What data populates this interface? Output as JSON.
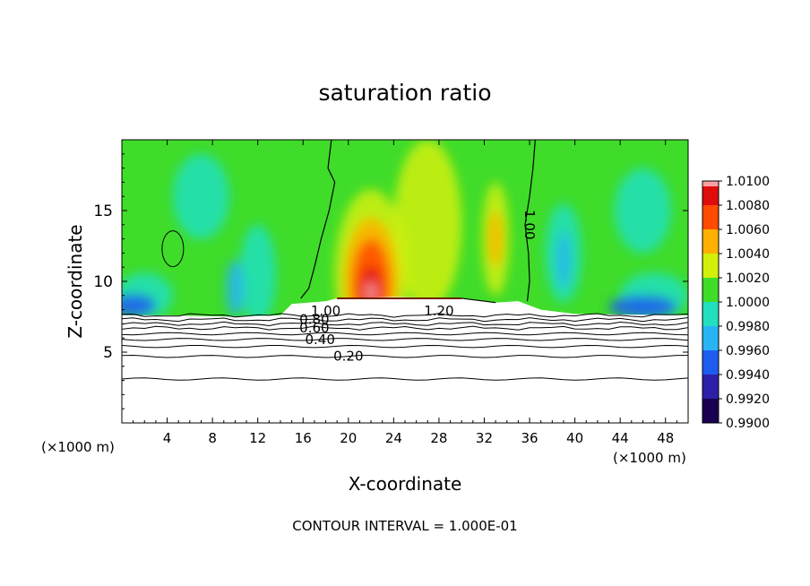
{
  "chart_data": {
    "type": "heatmap",
    "title": "saturation ratio",
    "xlabel": "X-coordinate",
    "ylabel": "Z-coordinate",
    "x_unit_left": "(×1000 m)",
    "x_unit_right": "(×1000 m)",
    "xlim": [
      0,
      50
    ],
    "ylim": [
      0,
      20
    ],
    "x_ticks": [
      4,
      8,
      12,
      16,
      20,
      24,
      28,
      32,
      36,
      40,
      44,
      48
    ],
    "x_tick_labels": [
      "4",
      "8",
      "12",
      "16",
      "20",
      "24",
      "28",
      "32",
      "36",
      "40",
      "44",
      "48"
    ],
    "y_ticks": [
      5,
      10,
      15
    ],
    "y_tick_labels": [
      "5",
      "10",
      "15"
    ],
    "footer": "CONTOUR INTERVAL = 1.000E-01",
    "colorbar": {
      "levels": [
        0.99,
        0.992,
        0.994,
        0.996,
        0.998,
        1.0,
        1.002,
        1.004,
        1.006,
        1.008,
        1.01
      ],
      "labels": [
        "0.9900",
        "0.9920",
        "0.9940",
        "0.9960",
        "0.9980",
        "1.0000",
        "1.0020",
        "1.0040",
        "1.0060",
        "1.0080",
        "1.0100"
      ],
      "colors": [
        "#1a0050",
        "#2c1fa8",
        "#1e5cf0",
        "#27b4f5",
        "#22e0be",
        "#3fdc2a",
        "#d2f00a",
        "#ffb000",
        "#ff4a00",
        "#e00c0c",
        "#f7a0a0"
      ]
    },
    "contour_labels": [
      {
        "text": "0.20",
        "x": 20.0,
        "z": 4.7
      },
      {
        "text": "0.40",
        "x": 17.5,
        "z": 5.9
      },
      {
        "text": "0.60",
        "x": 17.0,
        "z": 6.7
      },
      {
        "text": "0.80",
        "x": 17.0,
        "z": 7.3
      },
      {
        "text": "1.00",
        "x": 18.0,
        "z": 7.9
      },
      {
        "text": "1.20",
        "x": 28.0,
        "z": 7.9
      },
      {
        "text": "1.00",
        "x": 36.0,
        "z": 14.0
      }
    ]
  }
}
